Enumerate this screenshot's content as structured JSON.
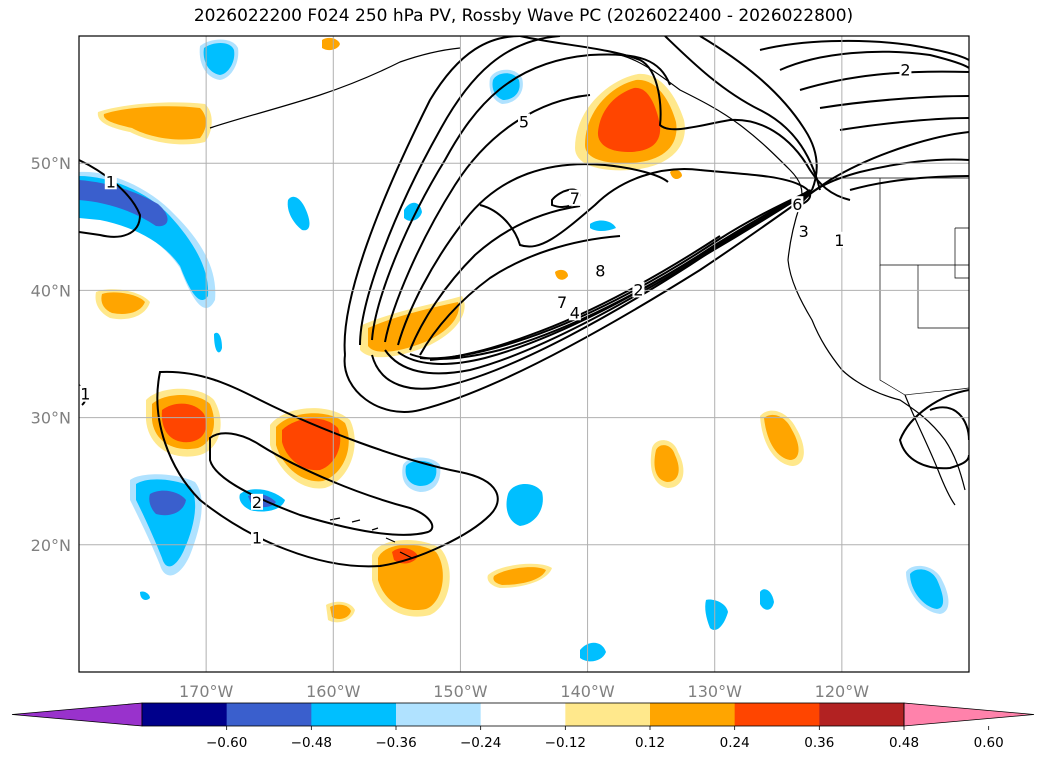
{
  "title": "2026022200 F024 250 hPa PV, Rossby Wave PC (2026022400 - 2026022800)",
  "map": {
    "lon_range": [
      -180,
      -110
    ],
    "lat_range": [
      10,
      60
    ],
    "lon_ticks": [
      {
        "value": -170,
        "label": "170°W"
      },
      {
        "value": -160,
        "label": "160°W"
      },
      {
        "value": -150,
        "label": "150°W"
      },
      {
        "value": -140,
        "label": "140°W"
      },
      {
        "value": -130,
        "label": "130°W"
      },
      {
        "value": -120,
        "label": "120°W"
      }
    ],
    "lat_ticks": [
      {
        "value": 20,
        "label": "20°N"
      },
      {
        "value": 30,
        "label": "30°N"
      },
      {
        "value": 40,
        "label": "40°N"
      },
      {
        "value": 50,
        "label": "50°N"
      }
    ],
    "gridlines": true
  },
  "contour_labels": [
    {
      "text": "1",
      "lon": -177.5,
      "lat": 48.5
    },
    {
      "text": "1",
      "lon": -179.5,
      "lat": 31.8
    },
    {
      "text": "1",
      "lon": -166.0,
      "lat": 20.5
    },
    {
      "text": "2",
      "lon": -166.0,
      "lat": 23.3
    },
    {
      "text": "5",
      "lon": -145.0,
      "lat": 53.2
    },
    {
      "text": "7",
      "lon": -141.0,
      "lat": 47.2
    },
    {
      "text": "8",
      "lon": -139.0,
      "lat": 41.5
    },
    {
      "text": "7",
      "lon": -142.0,
      "lat": 39.0
    },
    {
      "text": "4",
      "lon": -141.0,
      "lat": 38.2
    },
    {
      "text": "2",
      "lon": -136.0,
      "lat": 40.0
    },
    {
      "text": "6",
      "lon": -123.5,
      "lat": 46.7
    },
    {
      "text": "3",
      "lon": -123.0,
      "lat": 44.6
    },
    {
      "text": "1",
      "lon": -120.2,
      "lat": 43.9
    },
    {
      "text": "2",
      "lon": -115.0,
      "lat": 57.3
    }
  ],
  "colorbar": {
    "extend": "both",
    "ticks": [
      "−0.60",
      "−0.48",
      "−0.36",
      "−0.24",
      "−0.12",
      "0.12",
      "0.24",
      "0.36",
      "0.48",
      "0.60"
    ],
    "colors": [
      "#9932cc",
      "#00008b",
      "#3a5fcd",
      "#00bfff",
      "#b0e2ff",
      "#ffffff",
      "#ffe88c",
      "#ffa500",
      "#ff4500",
      "#b22222",
      "#ff82ab"
    ]
  }
}
